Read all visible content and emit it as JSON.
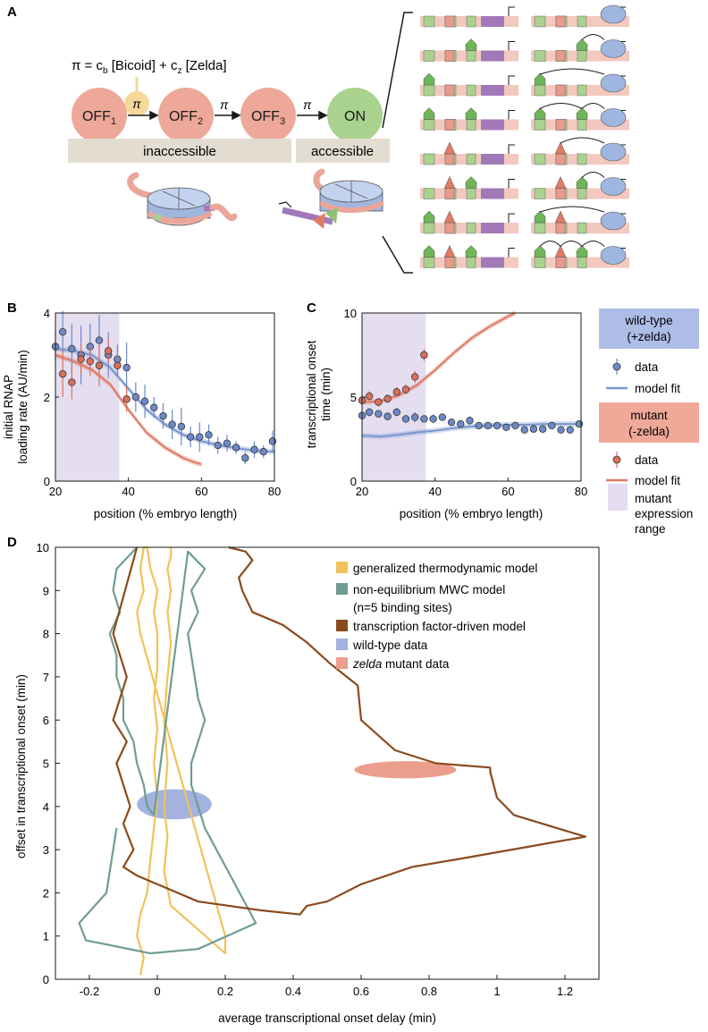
{
  "panelA": {
    "label": "A",
    "formula_pi": "π",
    "formula_eq": " = c",
    "formula_sub_b": "b",
    "formula_bicoid": " [Bicoid] + c",
    "formula_sub_z": "z",
    "formula_zelda": " [Zelda]",
    "states": [
      {
        "name": "OFF",
        "sub": "1",
        "color": "#eda89a"
      },
      {
        "name": "OFF",
        "sub": "2",
        "color": "#eda89a"
      },
      {
        "name": "OFF",
        "sub": "3",
        "color": "#eda89a"
      },
      {
        "name": "ON",
        "sub": "",
        "color": "#a9d28e"
      }
    ],
    "arrow_label": "π",
    "inaccessible": "inaccessible",
    "accessible": "accessible"
  },
  "chart_data": [
    {
      "panel": "B",
      "type": "scatter",
      "ylabel": "initial RNAP loading rate (AU/min)",
      "xlabel": "position (% embryo length)",
      "xlim": [
        20,
        80
      ],
      "ylim": [
        0,
        4
      ],
      "xticks": [
        "20",
        "40",
        "60",
        "80"
      ],
      "yticks": [
        "0",
        "2",
        "4"
      ],
      "shade": [
        20,
        37.5
      ],
      "series": [
        {
          "name": "wild-type data",
          "color": "#6d8ac8",
          "x": [
            20,
            22,
            24.5,
            27,
            29.5,
            32,
            34.5,
            37,
            39.5,
            42,
            44.5,
            47,
            49.5,
            52,
            54.5,
            57,
            59.5,
            62,
            64.5,
            67,
            69.5,
            72,
            74.5,
            77,
            79.5
          ],
          "y": [
            3.2,
            3.55,
            3.15,
            3.0,
            3.2,
            3.35,
            3.0,
            2.9,
            2.7,
            2.0,
            1.9,
            1.75,
            1.55,
            1.35,
            1.3,
            1.05,
            1.05,
            1.1,
            0.85,
            0.9,
            0.8,
            0.55,
            0.75,
            0.7,
            0.95
          ],
          "err": [
            0.35,
            0.5,
            0.6,
            0.7,
            0.55,
            0.6,
            0.55,
            0.35,
            0.6,
            0.35,
            0.4,
            0.25,
            0.3,
            0.35,
            0.45,
            0.25,
            0.35,
            0.25,
            0.2,
            0.2,
            0.15,
            0.15,
            0.2,
            0.15,
            0.25
          ]
        },
        {
          "name": "mutant data",
          "color": "#d9705e",
          "x": [
            22,
            24.5,
            27,
            29.5,
            32,
            34.5,
            37,
            39.5
          ],
          "y": [
            2.55,
            2.35,
            2.9,
            2.85,
            2.75,
            3.1,
            2.75,
            1.95
          ],
          "err": [
            0.55,
            0.4,
            0.35,
            0.35,
            0.5,
            0.3,
            0.25,
            0.3
          ]
        }
      ],
      "fits": [
        {
          "name": "wild-type model fit",
          "color": "#7b97d0",
          "x": [
            20,
            25,
            30,
            35,
            40,
            45,
            50,
            55,
            60,
            65,
            70,
            75,
            80
          ],
          "y": [
            3.15,
            3.1,
            3.0,
            2.7,
            2.2,
            1.7,
            1.35,
            1.1,
            0.95,
            0.85,
            0.78,
            0.72,
            0.7
          ]
        },
        {
          "name": "mutant model fit",
          "color": "#e07a64",
          "x": [
            20,
            25,
            30,
            35,
            40,
            45,
            50,
            55,
            58,
            60
          ],
          "y": [
            3.0,
            2.85,
            2.65,
            2.3,
            1.7,
            1.15,
            0.8,
            0.55,
            0.45,
            0.4
          ]
        }
      ]
    },
    {
      "panel": "C",
      "type": "scatter",
      "ylabel": "transcriptional onset time (min)",
      "xlabel": "position (% embryo length)",
      "xlim": [
        20,
        80
      ],
      "ylim": [
        0,
        10
      ],
      "xticks": [
        "20",
        "40",
        "60",
        "80"
      ],
      "yticks": [
        "0",
        "5",
        "10"
      ],
      "shade": [
        20,
        37.5
      ],
      "series": [
        {
          "name": "wild-type data",
          "color": "#6d8ac8",
          "x": [
            20,
            22,
            24.5,
            27,
            29.5,
            32,
            34.5,
            37,
            39.5,
            42,
            44.5,
            47,
            49.5,
            52,
            54.5,
            57,
            59.5,
            62,
            64.5,
            67,
            69.5,
            72,
            74.5,
            77,
            79.5
          ],
          "y": [
            3.9,
            4.1,
            4.0,
            3.85,
            4.1,
            3.7,
            3.8,
            3.7,
            3.7,
            3.8,
            3.5,
            3.4,
            3.6,
            3.3,
            3.3,
            3.3,
            3.2,
            3.3,
            3.05,
            3.1,
            3.1,
            3.3,
            3.05,
            3.05,
            3.4
          ],
          "err": [
            0.2,
            0.25,
            0.2,
            0.2,
            0.25,
            0.2,
            0.3,
            0.2,
            0.25,
            0.2,
            0.2,
            0.2,
            0.25,
            0.2,
            0.2,
            0.2,
            0.2,
            0.2,
            0.15,
            0.15,
            0.15,
            0.15,
            0.15,
            0.15,
            0.2
          ]
        },
        {
          "name": "mutant data",
          "color": "#d9705e",
          "x": [
            20,
            22,
            24.5,
            27,
            29.5,
            32,
            34.5,
            37
          ],
          "y": [
            4.8,
            5.05,
            4.7,
            4.9,
            5.3,
            5.45,
            6.2,
            7.5
          ],
          "err": [
            0.25,
            0.3,
            0.25,
            0.25,
            0.3,
            0.3,
            0.35,
            0.35
          ]
        }
      ],
      "fits": [
        {
          "name": "wild-type model fit",
          "color": "#7b97d0",
          "x": [
            20,
            25,
            30,
            35,
            40,
            45,
            50,
            55,
            60,
            65,
            70,
            75,
            80
          ],
          "y": [
            2.7,
            2.65,
            2.75,
            2.9,
            3.0,
            3.15,
            3.25,
            3.3,
            3.35,
            3.35,
            3.4,
            3.4,
            3.4
          ]
        },
        {
          "name": "mutant model fit",
          "color": "#e07a64",
          "x": [
            20,
            25,
            30,
            35,
            40,
            45,
            50,
            55,
            60,
            62
          ],
          "y": [
            4.7,
            4.75,
            5.1,
            5.7,
            6.6,
            7.6,
            8.5,
            9.2,
            9.8,
            10.0
          ]
        }
      ]
    },
    {
      "panel": "D",
      "type": "line",
      "xlabel": "average transcriptional onset delay (min)",
      "ylabel": "offset in transcriptional onset (min)",
      "xlim": [
        -0.3,
        1.3
      ],
      "ylim": [
        0,
        10
      ],
      "xticks": [
        "-0.2",
        "0",
        "0.2",
        "0.4",
        "0.6",
        "0.8",
        "1",
        "1.2"
      ],
      "yticks": [
        "0",
        "1",
        "2",
        "3",
        "4",
        "5",
        "6",
        "7",
        "8",
        "9",
        "10"
      ],
      "series": [
        {
          "name": "generalized thermodynamic model (outer)",
          "color": "#f0c35a",
          "x": [
            -0.05,
            -0.04,
            -0.06,
            -0.05,
            -0.03,
            -0.02,
            -0.01,
            0.0,
            -0.01,
            0.0,
            -0.01,
            0.0,
            0.0,
            -0.01,
            0.0,
            -0.02,
            -0.03,
            -0.04,
            -0.05,
            -0.04,
            -0.06,
            -0.05,
            0.2,
            0.2,
            0.04,
            0.02,
            0.03,
            0.02,
            0.03,
            0.02,
            0.03,
            0.04,
            0.03,
            0.04,
            0.03,
            0.04,
            0.04
          ],
          "y": [
            0.1,
            0.5,
            1.0,
            1.5,
            2.0,
            2.8,
            3.5,
            4.2,
            5.0,
            5.8,
            6.5,
            7.2,
            8.0,
            8.5,
            9.0,
            9.5,
            10.0,
            10.0,
            9.5,
            9.0,
            8.5,
            8.0,
            1.0,
            0.6,
            1.7,
            2.5,
            3.3,
            4.0,
            5.0,
            6.0,
            7.0,
            7.8,
            8.5,
            9.0,
            9.5,
            9.8,
            10.0
          ]
        },
        {
          "name": "non-equilibrium MWC model (n=5 binding sites)",
          "color": "#6f9d93",
          "x": [
            -0.06,
            -0.12,
            -0.13,
            -0.11,
            -0.14,
            -0.12,
            -0.12,
            -0.1,
            -0.1,
            -0.07,
            -0.06,
            -0.04,
            -0.03,
            -0.01,
            0.09,
            0.14,
            0.1,
            0.12,
            0.09,
            0.1,
            0.11,
            0.12,
            0.14,
            0.12,
            0.1,
            0.1,
            0.12,
            0.14,
            0.29,
            0.12,
            -0.02,
            -0.21,
            -0.23,
            -0.15,
            -0.12
          ],
          "y": [
            10.0,
            9.5,
            9.0,
            8.5,
            8.0,
            7.5,
            7.0,
            6.5,
            6.0,
            5.5,
            5.0,
            4.5,
            4.0,
            3.8,
            9.9,
            9.5,
            9.0,
            8.5,
            8.0,
            7.5,
            7.0,
            6.5,
            6.0,
            5.5,
            5.0,
            4.5,
            4.0,
            3.5,
            1.3,
            0.7,
            0.6,
            0.9,
            1.3,
            2.0,
            3.5
          ]
        },
        {
          "name": "transcription factor-driven model",
          "color": "#8b4a1d",
          "x": [
            -0.06,
            -0.13,
            -0.09,
            -0.13,
            -0.09,
            -0.12,
            -0.1,
            -0.08,
            -0.1,
            -0.07,
            -0.1,
            -0.06,
            0.0,
            0.12,
            0.3,
            0.42,
            0.44,
            0.5,
            0.6,
            0.75,
            0.9,
            1.26,
            1.05,
            1.0,
            0.98,
            0.98,
            0.82,
            0.7,
            0.6,
            0.59,
            0.51,
            0.44,
            0.37,
            0.28,
            0.25,
            0.24,
            0.26,
            0.28,
            0.26,
            0.21
          ],
          "y": [
            10.0,
            8.0,
            7.0,
            6.0,
            5.5,
            5.0,
            4.5,
            4.0,
            3.6,
            3.0,
            2.6,
            2.4,
            2.2,
            1.8,
            1.6,
            1.5,
            1.7,
            1.8,
            2.2,
            2.6,
            2.8,
            3.3,
            3.8,
            4.2,
            4.8,
            4.9,
            5.0,
            5.3,
            6.0,
            6.8,
            7.3,
            7.8,
            8.2,
            8.5,
            9.0,
            9.3,
            9.5,
            9.7,
            9.9,
            10.0
          ]
        }
      ],
      "ellipses": [
        {
          "name": "wild-type data",
          "color": "#a3b2df",
          "cx": 0.05,
          "cy": 4.05,
          "rx": 0.11,
          "ry": 0.35
        },
        {
          "name": "zelda mutant data",
          "color": "#ec9e8d",
          "cx": 0.73,
          "cy": 4.85,
          "rx": 0.15,
          "ry": 0.2
        }
      ]
    }
  ],
  "legendBC": {
    "wt_title": "wild-type",
    "wt_sub": "(+zelda)",
    "data": "data",
    "model_fit": "model fit",
    "mut_title": "mutant",
    "mut_sub": "(-zelda)",
    "range1": "mutant",
    "range2": "expression",
    "range3": "range"
  },
  "legendD": {
    "items": [
      {
        "label": "generalized thermodynamic model",
        "color": "#f0c35a"
      },
      {
        "label": "non-equilibrium MWC model",
        "color": "#6f9d93"
      },
      {
        "label": "(n=5 binding sites)",
        "color": ""
      },
      {
        "label": "transcription factor-driven model",
        "color": "#8b4a1d"
      },
      {
        "label": "wild-type data",
        "color": "#a3b2df"
      },
      {
        "label": "zelda",
        "color": "#ec9e8d",
        "rest": " mutant data"
      }
    ]
  },
  "labels": {
    "B": "B",
    "C": "C",
    "D": "D"
  }
}
